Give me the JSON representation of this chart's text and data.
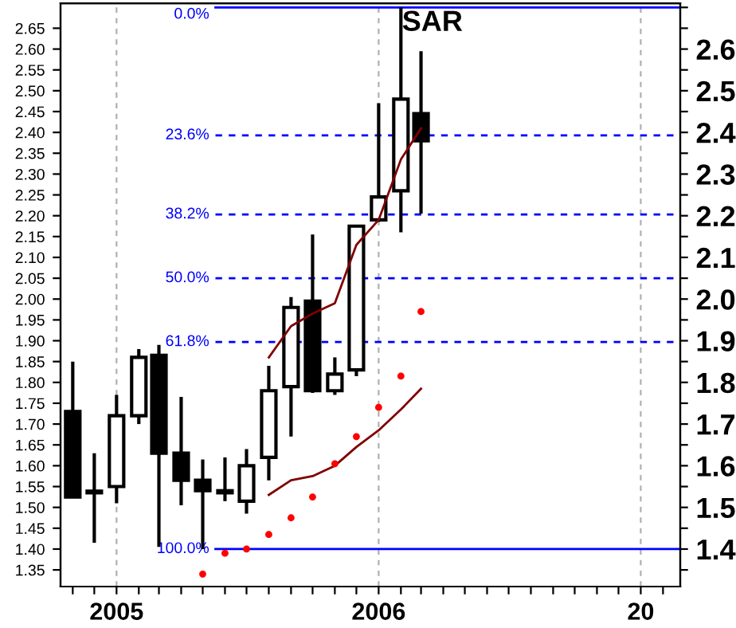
{
  "chart_data": {
    "type": "candlestick",
    "title": "SAR",
    "x": [
      "2004-11",
      "2004-12",
      "2005-01",
      "2005-02",
      "2005-03",
      "2005-04",
      "2005-05",
      "2005-06",
      "2005-07",
      "2005-08",
      "2005-09",
      "2005-10",
      "2005-11",
      "2005-12",
      "2006-01",
      "2006-02",
      "2006-03"
    ],
    "ohlc": [
      [
        1.73,
        1.85,
        1.525,
        1.525
      ],
      [
        1.535,
        1.63,
        1.415,
        1.535
      ],
      [
        1.55,
        1.77,
        1.51,
        1.72
      ],
      [
        1.72,
        1.88,
        1.7,
        1.86
      ],
      [
        1.865,
        1.89,
        1.405,
        1.63
      ],
      [
        1.63,
        1.765,
        1.505,
        1.565
      ],
      [
        1.565,
        1.615,
        1.4,
        1.54
      ],
      [
        1.54,
        1.62,
        1.515,
        1.535
      ],
      [
        1.515,
        1.64,
        1.485,
        1.6
      ],
      [
        1.62,
        1.84,
        1.565,
        1.78
      ],
      [
        1.79,
        2.005,
        1.67,
        1.98
      ],
      [
        1.995,
        2.155,
        1.775,
        1.78
      ],
      [
        1.78,
        1.86,
        1.77,
        1.82
      ],
      [
        1.83,
        2.175,
        1.815,
        2.175
      ],
      [
        2.19,
        2.47,
        2.185,
        2.245
      ],
      [
        2.26,
        2.7,
        2.16,
        2.48
      ],
      [
        2.445,
        2.595,
        2.205,
        2.38
      ]
    ],
    "series": [
      {
        "type": "line",
        "color": "#800000",
        "values": [
          null,
          null,
          null,
          null,
          null,
          null,
          null,
          null,
          null,
          1.86,
          1.935,
          1.965,
          1.99,
          2.13,
          2.19,
          2.335,
          2.41
        ]
      },
      {
        "type": "line",
        "color": "#800000",
        "values": [
          null,
          null,
          null,
          null,
          null,
          null,
          null,
          null,
          null,
          1.53,
          1.565,
          1.575,
          1.6,
          1.645,
          1.685,
          1.735,
          1.785
        ]
      },
      {
        "type": "scatter",
        "color": "#ff0000",
        "values": [
          null,
          null,
          null,
          null,
          null,
          null,
          1.34,
          1.39,
          1.4,
          1.435,
          1.475,
          1.525,
          1.605,
          1.67,
          1.74,
          1.815,
          1.97
        ]
      }
    ],
    "xlim": [
      "2004-10-15",
      "2007-02-25"
    ],
    "xticks": [
      {
        "value": "2004-11",
        "label": null
      },
      {
        "value": "2004-12",
        "label": null
      },
      {
        "value": "2005-01",
        "label": "2005"
      },
      {
        "value": "2005-02",
        "label": null
      },
      {
        "value": "2005-03",
        "label": null
      },
      {
        "value": "2005-04",
        "label": null
      },
      {
        "value": "2005-05",
        "label": null
      },
      {
        "value": "2005-06",
        "label": null
      },
      {
        "value": "2005-07",
        "label": null
      },
      {
        "value": "2005-08",
        "label": null
      },
      {
        "value": "2005-09",
        "label": null
      },
      {
        "value": "2005-10",
        "label": null
      },
      {
        "value": "2005-11",
        "label": null
      },
      {
        "value": "2005-12",
        "label": null
      },
      {
        "value": "2006-01",
        "label": "2006"
      },
      {
        "value": "2006-02",
        "label": null
      },
      {
        "value": "2006-03",
        "label": null
      },
      {
        "value": "2006-04",
        "label": null
      },
      {
        "value": "2006-05",
        "label": null
      },
      {
        "value": "2006-06",
        "label": null
      },
      {
        "value": "2006-07",
        "label": null
      },
      {
        "value": "2006-08",
        "label": null
      },
      {
        "value": "2006-09",
        "label": null
      },
      {
        "value": "2006-10",
        "label": null
      },
      {
        "value": "2006-11",
        "label": null
      },
      {
        "value": "2006-12",
        "label": null
      },
      {
        "value": "2007-01",
        "label": "20"
      },
      {
        "value": "2007-02",
        "label": null
      }
    ],
    "ylim": [
      1.31,
      2.71
    ],
    "yticks": [
      {
        "value": 1.35,
        "label": "1.35"
      },
      {
        "value": 1.4,
        "label": "1.40"
      },
      {
        "value": 1.45,
        "label": "1.45"
      },
      {
        "value": 1.5,
        "label": "1.50"
      },
      {
        "value": 1.55,
        "label": "1.55"
      },
      {
        "value": 1.6,
        "label": "1.60"
      },
      {
        "value": 1.65,
        "label": "1.65"
      },
      {
        "value": 1.7,
        "label": "1.70"
      },
      {
        "value": 1.75,
        "label": "1.75"
      },
      {
        "value": 1.8,
        "label": "1.80"
      },
      {
        "value": 1.85,
        "label": "1.85"
      },
      {
        "value": 1.9,
        "label": "1.90"
      },
      {
        "value": 1.95,
        "label": "1.95"
      },
      {
        "value": 2.0,
        "label": "2.00"
      },
      {
        "value": 2.05,
        "label": "2.05"
      },
      {
        "value": 2.1,
        "label": "2.10"
      },
      {
        "value": 2.15,
        "label": "2.15"
      },
      {
        "value": 2.2,
        "label": "2.20"
      },
      {
        "value": 2.25,
        "label": "2.25"
      },
      {
        "value": 2.3,
        "label": "2.30"
      },
      {
        "value": 2.35,
        "label": "2.35"
      },
      {
        "value": 2.4,
        "label": "2.40"
      },
      {
        "value": 2.45,
        "label": "2.45"
      },
      {
        "value": 2.5,
        "label": "2.50"
      },
      {
        "value": 2.55,
        "label": "2.55"
      },
      {
        "value": 2.6,
        "label": "2.60"
      },
      {
        "value": 2.65,
        "label": "2.65"
      }
    ],
    "y2lim": [
      1.31,
      2.71
    ],
    "y2ticks": [
      {
        "value": 1.35,
        "label": null
      },
      1.4,
      {
        "value": 1.45,
        "label": null
      },
      1.5,
      {
        "value": 1.55,
        "label": null
      },
      1.6,
      {
        "value": 1.65,
        "label": null
      },
      1.7,
      {
        "value": 1.75,
        "label": null
      },
      1.8,
      {
        "value": 1.85,
        "label": null
      },
      1.9,
      {
        "value": 1.95,
        "label": null
      },
      {
        "value": 2.0,
        "label": "2.0"
      },
      {
        "value": 2.05,
        "label": null
      },
      2.1,
      {
        "value": 2.15,
        "label": null
      },
      2.2,
      {
        "value": 2.25,
        "label": null
      },
      2.3,
      {
        "value": 2.35,
        "label": null
      },
      2.4,
      {
        "value": 2.45,
        "label": null
      },
      2.5,
      {
        "value": 2.55,
        "label": null
      },
      2.6,
      {
        "value": 2.65,
        "label": null
      },
      {
        "value": 2.7,
        "label": null
      }
    ],
    "ref_lines": [
      {
        "axis": "y",
        "value": 2.7,
        "color": "#0000ff",
        "line_style": "solid"
      },
      {
        "axis": "y",
        "value": 2.393,
        "color": "#0000ff",
        "line_style": "dashed"
      },
      {
        "axis": "y",
        "value": 2.203,
        "color": "#0000ff",
        "line_style": "dashed"
      },
      {
        "axis": "y",
        "value": 2.05,
        "color": "#0000ff",
        "line_style": "dashed"
      },
      {
        "axis": "y",
        "value": 1.897,
        "color": "#0000ff",
        "line_style": "dashed"
      },
      {
        "axis": "y",
        "value": 1.4,
        "color": "#0000ff",
        "line_style": "solid"
      }
    ],
    "annotations": [
      "0.0%",
      "23.6%",
      "38.2%",
      "50.0%",
      "61.8%",
      "100.0%"
    ],
    "grid": "x"
  }
}
